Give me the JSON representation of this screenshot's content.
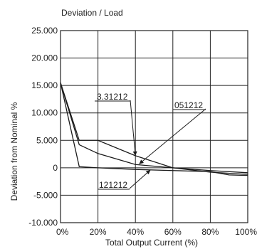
{
  "chart_data": {
    "type": "line",
    "title": "Deviation / Load",
    "xlabel": "Total Output Current (%)",
    "ylabel": "Deviation from Nominal %",
    "xlim": [
      0,
      100
    ],
    "ylim": [
      -10,
      25
    ],
    "grid": true,
    "x_ticks": [
      0,
      20,
      40,
      60,
      80,
      100
    ],
    "x_tick_labels": [
      "0%",
      "20%",
      "40%",
      "60%",
      "80%",
      "100%"
    ],
    "y_ticks": [
      -10,
      -5,
      0,
      5,
      10,
      15,
      20,
      25
    ],
    "y_tick_labels": [
      "-10.000",
      "-5.000",
      "0",
      "5.000",
      "10.000",
      "15.000",
      "20.000",
      "25.000"
    ],
    "series": [
      {
        "name": "3.31212",
        "x": [
          0,
          10,
          20,
          40,
          60,
          80,
          100
        ],
        "y": [
          15.5,
          5.0,
          5.0,
          2.2,
          0.0,
          -0.8,
          -1.2
        ]
      },
      {
        "name": "051212",
        "x": [
          0,
          10,
          20,
          40,
          60,
          80,
          100
        ],
        "y": [
          15.5,
          4.2,
          2.6,
          0.6,
          0.0,
          -0.5,
          -0.9
        ]
      },
      {
        "name": "121212",
        "x": [
          0,
          10,
          20,
          40,
          60,
          80,
          90,
          100
        ],
        "y": [
          15.5,
          0.2,
          0.0,
          -0.3,
          -0.5,
          -0.7,
          -1.3,
          -1.4
        ]
      }
    ],
    "annotations": [
      {
        "text": "3.31212",
        "series": "3.31212",
        "x_point": 40,
        "y_point": 2.2
      },
      {
        "text": "051212",
        "series": "051212",
        "x_point": 42,
        "y_point": 0.7
      },
      {
        "text": "121212",
        "series": "121212",
        "x_point": 48,
        "y_point": -0.4
      }
    ],
    "line_color": "#1a1a1a",
    "grid_color": "#222222"
  }
}
